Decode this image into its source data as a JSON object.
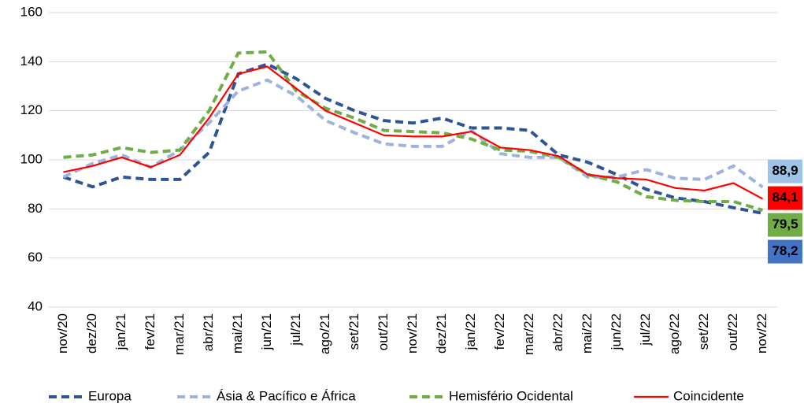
{
  "chart_data": {
    "type": "line",
    "categories": [
      "nov/20",
      "dez/20",
      "jan/21",
      "fev/21",
      "mar/21",
      "abr/21",
      "mai/21",
      "jun/21",
      "jul/21",
      "ago/21",
      "set/21",
      "out/21",
      "nov/21",
      "dez/21",
      "jan/22",
      "fev/22",
      "mar/22",
      "abr/22",
      "mai/22",
      "jun/22",
      "jul/22",
      "ago/22",
      "set/22",
      "out/22",
      "nov/22"
    ],
    "series": [
      {
        "name": "Europa",
        "color": "#2F5597",
        "dash": true,
        "label_color": "#4472C4",
        "values": [
          93,
          89,
          93,
          92,
          92,
          103,
          135,
          139,
          133,
          125,
          120,
          116,
          115,
          117,
          113,
          113,
          112,
          102,
          99,
          94,
          88,
          84.5,
          83,
          80.5,
          78.2
        ],
        "value_labels": [
          null,
          null,
          null,
          null,
          null,
          null,
          null,
          null,
          null,
          null,
          null,
          null,
          null,
          null,
          null,
          null,
          null,
          null,
          null,
          null,
          null,
          null,
          null,
          null,
          "78,2"
        ]
      },
      {
        "name": "Ásia & Pacífico e África",
        "color": "#9DB4DF",
        "dash": true,
        "label_color": "#9DC3E6",
        "values": [
          93,
          98.5,
          102,
          97,
          104,
          115,
          128,
          132.5,
          126,
          116,
          111,
          106.5,
          105.5,
          105.5,
          112,
          102.5,
          101,
          101,
          93,
          93,
          96,
          92.5,
          92,
          97.5,
          88.9
        ],
        "value_labels": [
          null,
          null,
          null,
          null,
          null,
          null,
          null,
          null,
          null,
          null,
          null,
          null,
          null,
          null,
          null,
          null,
          null,
          null,
          null,
          null,
          null,
          null,
          null,
          null,
          "88,9"
        ]
      },
      {
        "name": "Hemisfério Ocidental",
        "color": "#70AD47",
        "dash": true,
        "label_color": "#70AD47",
        "values": [
          101,
          102,
          105,
          103,
          104,
          120,
          143.5,
          144,
          128,
          121,
          117,
          112,
          111.5,
          111,
          108.5,
          104,
          103.5,
          101,
          94,
          91,
          85,
          83.5,
          83,
          83,
          79.5
        ],
        "value_labels": [
          null,
          null,
          null,
          null,
          null,
          null,
          null,
          null,
          null,
          null,
          null,
          null,
          null,
          null,
          null,
          null,
          null,
          null,
          null,
          null,
          null,
          null,
          null,
          null,
          "79,5"
        ]
      },
      {
        "name": "Coincidente",
        "color": "#FF0000",
        "dash": false,
        "label_color": "#FF0000",
        "values": [
          95,
          97.5,
          101,
          97,
          102,
          117,
          135,
          138,
          129,
          120,
          115,
          110,
          109.5,
          109.5,
          111.5,
          105,
          104,
          101.5,
          94,
          92.5,
          92,
          88.5,
          87.5,
          90.5,
          84.1
        ],
        "value_labels": [
          null,
          null,
          null,
          null,
          null,
          null,
          null,
          null,
          null,
          null,
          null,
          null,
          null,
          null,
          null,
          null,
          null,
          null,
          null,
          null,
          null,
          null,
          null,
          null,
          "84,1"
        ]
      }
    ],
    "ylim": [
      40,
      160
    ],
    "yticks": [
      40,
      60,
      80,
      100,
      120,
      140,
      160
    ],
    "grid": true,
    "legend": "bottom"
  }
}
